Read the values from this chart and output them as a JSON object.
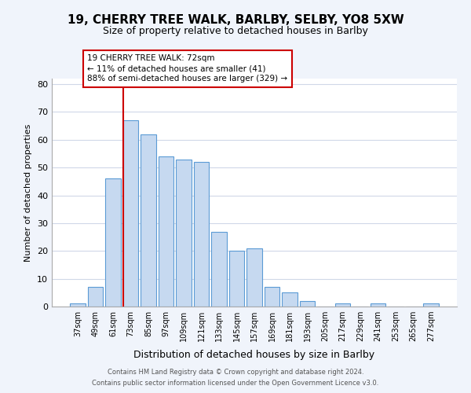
{
  "title": "19, CHERRY TREE WALK, BARLBY, SELBY, YO8 5XW",
  "subtitle": "Size of property relative to detached houses in Barlby",
  "xlabel": "Distribution of detached houses by size in Barlby",
  "ylabel": "Number of detached properties",
  "bin_labels": [
    "37sqm",
    "49sqm",
    "61sqm",
    "73sqm",
    "85sqm",
    "97sqm",
    "109sqm",
    "121sqm",
    "133sqm",
    "145sqm",
    "157sqm",
    "169sqm",
    "181sqm",
    "193sqm",
    "205sqm",
    "217sqm",
    "229sqm",
    "241sqm",
    "253sqm",
    "265sqm",
    "277sqm"
  ],
  "bar_heights": [
    1,
    7,
    46,
    67,
    62,
    54,
    53,
    52,
    27,
    20,
    21,
    7,
    5,
    2,
    0,
    1,
    0,
    1,
    0,
    0,
    1
  ],
  "bar_color": "#c6d9f0",
  "bar_edge_color": "#5b9bd5",
  "highlight_line_color": "#cc0000",
  "ylim": [
    0,
    82
  ],
  "yticks": [
    0,
    10,
    20,
    30,
    40,
    50,
    60,
    70,
    80
  ],
  "annotation_line1": "19 CHERRY TREE WALK: 72sqm",
  "annotation_line2": "← 11% of detached houses are smaller (41)",
  "annotation_line3": "88% of semi-detached houses are larger (329) →",
  "footer_line1": "Contains HM Land Registry data © Crown copyright and database right 2024.",
  "footer_line2": "Contains public sector information licensed under the Open Government Licence v3.0.",
  "bg_color": "#f0f4fb",
  "plot_bg_color": "#ffffff",
  "grid_color": "#d0d8e8"
}
